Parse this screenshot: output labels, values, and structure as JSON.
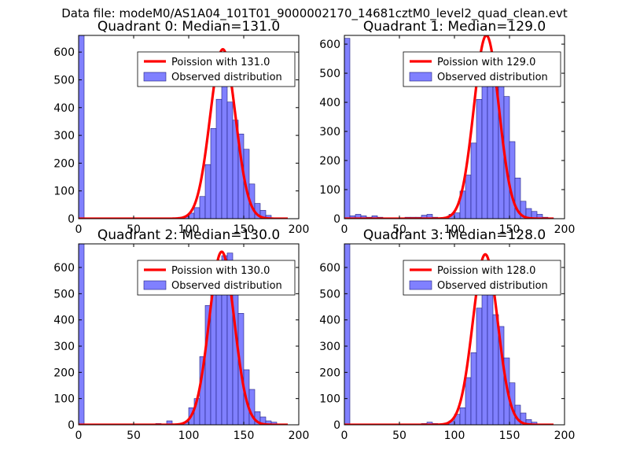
{
  "figure_title": "Data file: modeM0/AS1A04_101T01_9000002170_14681cztM0_level2_quad_clean.evt",
  "colors": {
    "hist_fill": "#8080ff",
    "hist_edge": "#202080",
    "poisson_line": "#ff0000"
  },
  "chart_data": [
    {
      "type": "bar",
      "title": "Quadrant 0: Median=131.0",
      "xlim": [
        0,
        200
      ],
      "ylim": [
        0,
        660
      ],
      "xticks": [
        0,
        50,
        100,
        150,
        200
      ],
      "yticks": [
        0,
        100,
        200,
        300,
        400,
        500,
        600
      ],
      "bin_width": 5,
      "bins": [
        [
          0,
          660
        ],
        [
          75,
          3
        ],
        [
          85,
          3
        ],
        [
          90,
          5
        ],
        [
          95,
          8
        ],
        [
          100,
          20
        ],
        [
          105,
          40
        ],
        [
          110,
          80
        ],
        [
          115,
          195
        ],
        [
          120,
          325
        ],
        [
          125,
          430
        ],
        [
          130,
          490
        ],
        [
          135,
          420
        ],
        [
          140,
          355
        ],
        [
          145,
          305
        ],
        [
          150,
          250
        ],
        [
          155,
          125
        ],
        [
          160,
          55
        ],
        [
          165,
          30
        ],
        [
          170,
          12
        ],
        [
          180,
          2
        ]
      ],
      "legend": {
        "line": "Poission with 131.0",
        "bar": "Observed distribution",
        "position": "top-right"
      },
      "poisson": {
        "mu": 131.0,
        "peak": 610,
        "sigma": 11.5,
        "x_start": 0,
        "x_end": 190
      }
    },
    {
      "type": "bar",
      "title": "Quadrant 1: Median=129.0",
      "xlim": [
        0,
        200
      ],
      "ylim": [
        0,
        630
      ],
      "xticks": [
        0,
        50,
        100,
        150,
        200
      ],
      "yticks": [
        0,
        100,
        200,
        300,
        400,
        500,
        600
      ],
      "bin_width": 5,
      "bins": [
        [
          0,
          620
        ],
        [
          5,
          10
        ],
        [
          10,
          15
        ],
        [
          15,
          10
        ],
        [
          20,
          5
        ],
        [
          25,
          10
        ],
        [
          30,
          5
        ],
        [
          35,
          3
        ],
        [
          40,
          3
        ],
        [
          45,
          3
        ],
        [
          50,
          3
        ],
        [
          55,
          5
        ],
        [
          60,
          5
        ],
        [
          65,
          5
        ],
        [
          70,
          12
        ],
        [
          75,
          15
        ],
        [
          80,
          5
        ],
        [
          85,
          3
        ],
        [
          90,
          3
        ],
        [
          95,
          15
        ],
        [
          100,
          20
        ],
        [
          105,
          95
        ],
        [
          110,
          150
        ],
        [
          115,
          260
        ],
        [
          120,
          410
        ],
        [
          125,
          490
        ],
        [
          130,
          555
        ],
        [
          135,
          570
        ],
        [
          140,
          520
        ],
        [
          145,
          420
        ],
        [
          150,
          265
        ],
        [
          155,
          140
        ],
        [
          160,
          60
        ],
        [
          165,
          35
        ],
        [
          170,
          25
        ],
        [
          175,
          15
        ],
        [
          180,
          5
        ],
        [
          185,
          3
        ]
      ],
      "legend": {
        "line": "Poission with 129.0",
        "bar": "Observed distribution",
        "position": "top-right"
      },
      "poisson": {
        "mu": 129.0,
        "peak": 630,
        "sigma": 11.4,
        "x_start": 0,
        "x_end": 190
      }
    },
    {
      "type": "bar",
      "title": "Quadrant 2: Median=130.0",
      "xlim": [
        0,
        200
      ],
      "ylim": [
        0,
        690
      ],
      "xticks": [
        0,
        50,
        100,
        150,
        200
      ],
      "yticks": [
        0,
        100,
        200,
        300,
        400,
        500,
        600
      ],
      "bin_width": 5,
      "bins": [
        [
          0,
          690
        ],
        [
          70,
          5
        ],
        [
          80,
          15
        ],
        [
          90,
          5
        ],
        [
          95,
          10
        ],
        [
          100,
          65
        ],
        [
          105,
          100
        ],
        [
          110,
          260
        ],
        [
          115,
          455
        ],
        [
          120,
          545
        ],
        [
          125,
          595
        ],
        [
          130,
          645
        ],
        [
          135,
          655
        ],
        [
          140,
          575
        ],
        [
          145,
          425
        ],
        [
          150,
          210
        ],
        [
          155,
          135
        ],
        [
          160,
          50
        ],
        [
          165,
          30
        ],
        [
          170,
          15
        ],
        [
          175,
          10
        ],
        [
          180,
          3
        ]
      ],
      "legend": {
        "line": "Poission with 130.0",
        "bar": "Observed distribution",
        "position": "top-right"
      },
      "poisson": {
        "mu": 130.0,
        "peak": 660,
        "sigma": 11.4,
        "x_start": 0,
        "x_end": 190
      }
    },
    {
      "type": "bar",
      "title": "Quadrant 3: Median=128.0",
      "xlim": [
        0,
        200
      ],
      "ylim": [
        0,
        690
      ],
      "xticks": [
        0,
        50,
        100,
        150,
        200
      ],
      "yticks": [
        0,
        100,
        200,
        300,
        400,
        500,
        600
      ],
      "bin_width": 5,
      "bins": [
        [
          0,
          690
        ],
        [
          70,
          5
        ],
        [
          75,
          10
        ],
        [
          80,
          5
        ],
        [
          85,
          3
        ],
        [
          90,
          3
        ],
        [
          95,
          15
        ],
        [
          100,
          40
        ],
        [
          105,
          65
        ],
        [
          110,
          180
        ],
        [
          115,
          275
        ],
        [
          120,
          445
        ],
        [
          125,
          540
        ],
        [
          130,
          525
        ],
        [
          135,
          420
        ],
        [
          140,
          375
        ],
        [
          145,
          255
        ],
        [
          150,
          160
        ],
        [
          155,
          75
        ],
        [
          160,
          45
        ],
        [
          165,
          20
        ],
        [
          170,
          10
        ],
        [
          175,
          3
        ]
      ],
      "legend": {
        "line": "Poission with 128.0",
        "bar": "Observed distribution",
        "position": "top-right"
      },
      "poisson": {
        "mu": 128.0,
        "peak": 650,
        "sigma": 11.3,
        "x_start": 0,
        "x_end": 190
      }
    }
  ]
}
